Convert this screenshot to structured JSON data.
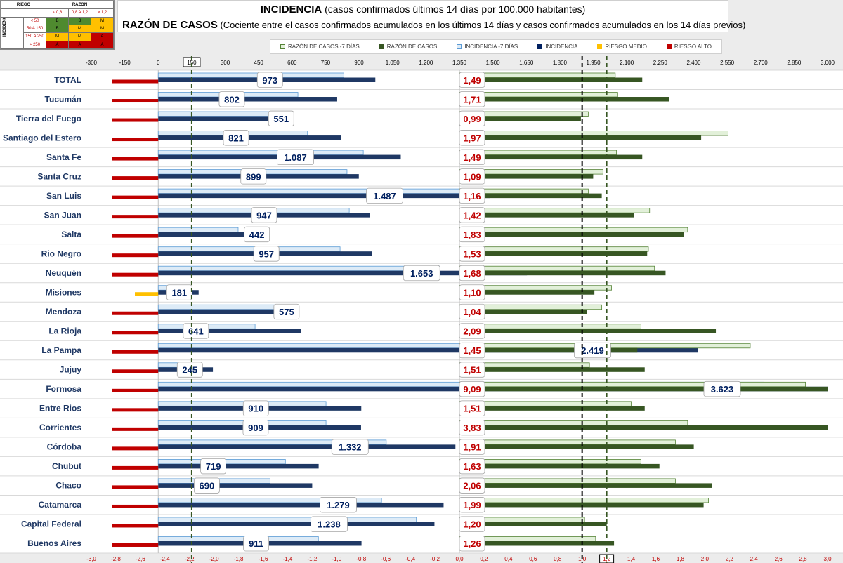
{
  "risk_matrix": {
    "title_riego": "RIEGO",
    "title_razon": "RAZON",
    "title_incidencia": "INCIDENCIA",
    "razon_cols": [
      "< 0,8",
      "0,8 A 1,2",
      "> 1,2"
    ],
    "rows": [
      {
        "label": "< 50",
        "cells": [
          "B",
          "B",
          "M"
        ]
      },
      {
        "label": "50 A 150",
        "cells": [
          "B",
          "M",
          "M"
        ]
      },
      {
        "label": "150 A 250",
        "cells": [
          "M",
          "M",
          "A"
        ]
      },
      {
        "label": "> 250",
        "cells": [
          "A",
          "A",
          "A"
        ]
      }
    ]
  },
  "header": {
    "title1_bold": "INCIDENCIA",
    "title1_rest": " (casos confirmados últimos 14 días por 100.000 habitantes)",
    "title2_bold": "RAZÓN DE CASOS",
    "title2_rest": " (Cociente entre el casos confirmados acumulados en los últimos 14 días y casos confirmados acumulados en los 14 días previos)"
  },
  "legend": [
    {
      "label": "RAZÓN DE CASOS -7 DÍAS",
      "color": "#e2f0d9",
      "border": "#548235"
    },
    {
      "label": "RAZÓN DE CASOS",
      "color": "#375623",
      "border": "#375623"
    },
    {
      "label": "INCIDENCIA -7 DÍAS",
      "color": "#ddebf7",
      "border": "#5b9bd5"
    },
    {
      "label": "INCIDENCIA",
      "color": "#002060",
      "border": "#002060"
    },
    {
      "label": "RIESGO MEDIO",
      "color": "#ffc000",
      "border": "#ffc000"
    },
    {
      "label": "RIESGO ALTO",
      "color": "#c00000",
      "border": "#c00000"
    }
  ],
  "colors": {
    "incidencia": "#1f3864",
    "incidencia_prev": "#ddebf7",
    "incidencia_prev_border": "#5b9bd5",
    "razon": "#375623",
    "razon_prev": "#e2f0d9",
    "razon_prev_border": "#548235",
    "riesgo_alto": "#c00000",
    "riesgo_medio": "#ffc000"
  },
  "chart_data": {
    "type": "bar",
    "orientation": "horizontal",
    "top_axis": {
      "min": -300,
      "max": 3000,
      "ticks": [
        "-300",
        "-150",
        "0",
        "150",
        "300",
        "450",
        "600",
        "750",
        "900",
        "1.050",
        "1.200",
        "1.350",
        "1.500",
        "1.650",
        "1.800",
        "1.950",
        "2.100",
        "2.250",
        "2.400",
        "2.550",
        "2.700",
        "2.850",
        "3.000"
      ],
      "highlighted_tick": "150"
    },
    "bottom_axis": {
      "min": -3.0,
      "max": 3.0,
      "ticks": [
        "-3,0",
        "-2,8",
        "-2,6",
        "-2,4",
        "-2,2",
        "-2,0",
        "-1,8",
        "-1,6",
        "-1,4",
        "-1,2",
        "-1,0",
        "-0,8",
        "-0,6",
        "-0,4",
        "-0,2",
        "0,0",
        "0,2",
        "0,4",
        "0,6",
        "0,8",
        "1,0",
        "1,2",
        "1,4",
        "1,6",
        "1,8",
        "2,0",
        "2,2",
        "2,4",
        "2,6",
        "2,8",
        "3,0"
      ],
      "highlighted_tick": "1,2"
    },
    "reference_lines": [
      {
        "axis": "top",
        "value": 150,
        "style": "dashed",
        "color": "#375623"
      },
      {
        "axis": "bottom",
        "value": 1.0,
        "style": "dashed",
        "color": "#000000"
      },
      {
        "axis": "bottom",
        "value": 1.2,
        "style": "dashed",
        "color": "#375623"
      }
    ],
    "razon_zero_at_incidencia": 1350,
    "categories": [
      "TOTAL",
      "Tucumán",
      "Tierra del Fuego",
      "Santiago del Estero",
      "Santa Fe",
      "Santa Cruz",
      "San Luis",
      "San Juan",
      "Salta",
      "Rio Negro",
      "Neuquén",
      "Misiones",
      "Mendoza",
      "La Rioja",
      "La Pampa",
      "Jujuy",
      "Formosa",
      "Entre Rios",
      "Corrientes",
      "Córdoba",
      "Chubut",
      "Chaco",
      "Catamarca",
      "Capital Federal",
      "Buenos Aires"
    ],
    "incidencia_labels": [
      "973",
      "802",
      "551",
      "821",
      "1.087",
      "899",
      "1.487",
      "947",
      "442",
      "957",
      "1.653",
      "181",
      "575",
      "641",
      "2.419",
      "245",
      "3.623",
      "910",
      "909",
      "1.332",
      "719",
      "690",
      "1.279",
      "1.238",
      "911"
    ],
    "incidencia": [
      973,
      802,
      551,
      821,
      1087,
      899,
      1487,
      947,
      442,
      957,
      1653,
      181,
      575,
      641,
      2419,
      245,
      3623,
      910,
      909,
      1332,
      719,
      690,
      1279,
      1238,
      911
    ],
    "incidencia_prev": [
      832,
      626,
      584,
      669,
      919,
      846,
      1387,
      856,
      358,
      815,
      1262,
      78,
      608,
      434,
      2284,
      177,
      2712,
      752,
      752,
      1022,
      570,
      501,
      1001,
      1157,
      718
    ],
    "razon_labels": [
      "1,49",
      "1,71",
      "0,99",
      "1,97",
      "1,49",
      "1,09",
      "1,16",
      "1,42",
      "1,83",
      "1,53",
      "1,68",
      "1,10",
      "1,04",
      "2,09",
      "1,45",
      "1,51",
      "9,09",
      "1,51",
      "3,83",
      "1,91",
      "1,63",
      "2,06",
      "1,99",
      "1,20",
      "1,26"
    ],
    "razon": [
      1.49,
      1.71,
      0.99,
      1.97,
      1.49,
      1.09,
      1.16,
      1.42,
      1.83,
      1.53,
      1.68,
      1.1,
      1.04,
      2.09,
      1.45,
      1.51,
      9.09,
      1.51,
      3.83,
      1.91,
      1.63,
      2.06,
      1.99,
      1.2,
      1.26
    ],
    "razon_prev": [
      1.27,
      1.29,
      1.05,
      2.19,
      1.28,
      1.17,
      1.05,
      1.55,
      1.86,
      1.54,
      1.59,
      1.24,
      1.16,
      1.48,
      2.37,
      1.06,
      2.82,
      1.4,
      1.86,
      1.76,
      1.48,
      1.76,
      2.03,
      1.02,
      1.11
    ],
    "riesgo": [
      "alto",
      "alto",
      "alto",
      "alto",
      "alto",
      "alto",
      "alto",
      "alto",
      "alto",
      "alto",
      "alto",
      "medio",
      "alto",
      "alto",
      "alto",
      "alto",
      "alto",
      "alto",
      "alto",
      "alto",
      "alto",
      "alto",
      "alto",
      "alto",
      "alto"
    ]
  }
}
